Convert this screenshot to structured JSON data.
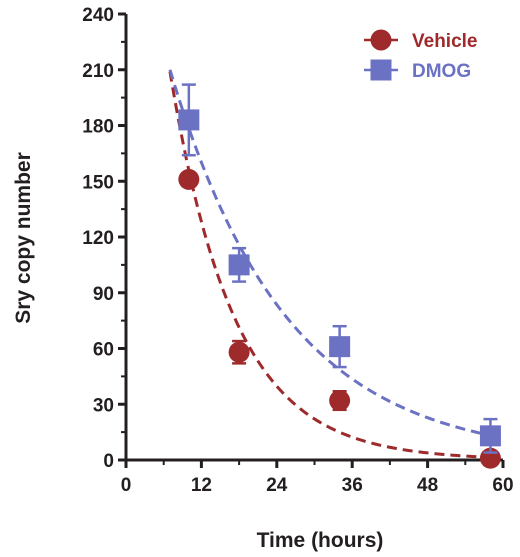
{
  "colors": {
    "vehicle": "#9e2a2b",
    "dmog": "#6b72c4",
    "axis": "#231f20"
  },
  "chart_data": {
    "type": "scatter",
    "xlabel": "Time (hours)",
    "ylabel": "Sry copy number",
    "xlim": [
      0,
      60
    ],
    "ylim": [
      0,
      240
    ],
    "xticks": [
      "0",
      "12",
      "24",
      "36",
      "48",
      "60"
    ],
    "yticks": [
      "0",
      "30",
      "60",
      "90",
      "120",
      "150",
      "180",
      "210",
      "240"
    ],
    "legend": "top-right",
    "grid": false,
    "series": [
      {
        "name": "Vehicle",
        "marker": "circle",
        "color": "#9e2a2b",
        "x": [
          10,
          18,
          34,
          58
        ],
        "y": [
          151,
          58,
          32,
          1
        ],
        "err": [
          3,
          6,
          5,
          2
        ],
        "fit": {
          "type": "exponential-decay",
          "a": 209,
          "k": 0.0977,
          "x0": 7,
          "xmax": 58
        }
      },
      {
        "name": "DMOG",
        "marker": "square",
        "color": "#6b72c4",
        "x": [
          10,
          18,
          34,
          58
        ],
        "y": [
          183,
          105,
          61,
          13
        ],
        "err": [
          19,
          9,
          11,
          9
        ],
        "fit": {
          "type": "exponential-decay",
          "a": 210,
          "k": 0.0542,
          "x0": 7,
          "xmax": 58
        }
      }
    ]
  }
}
